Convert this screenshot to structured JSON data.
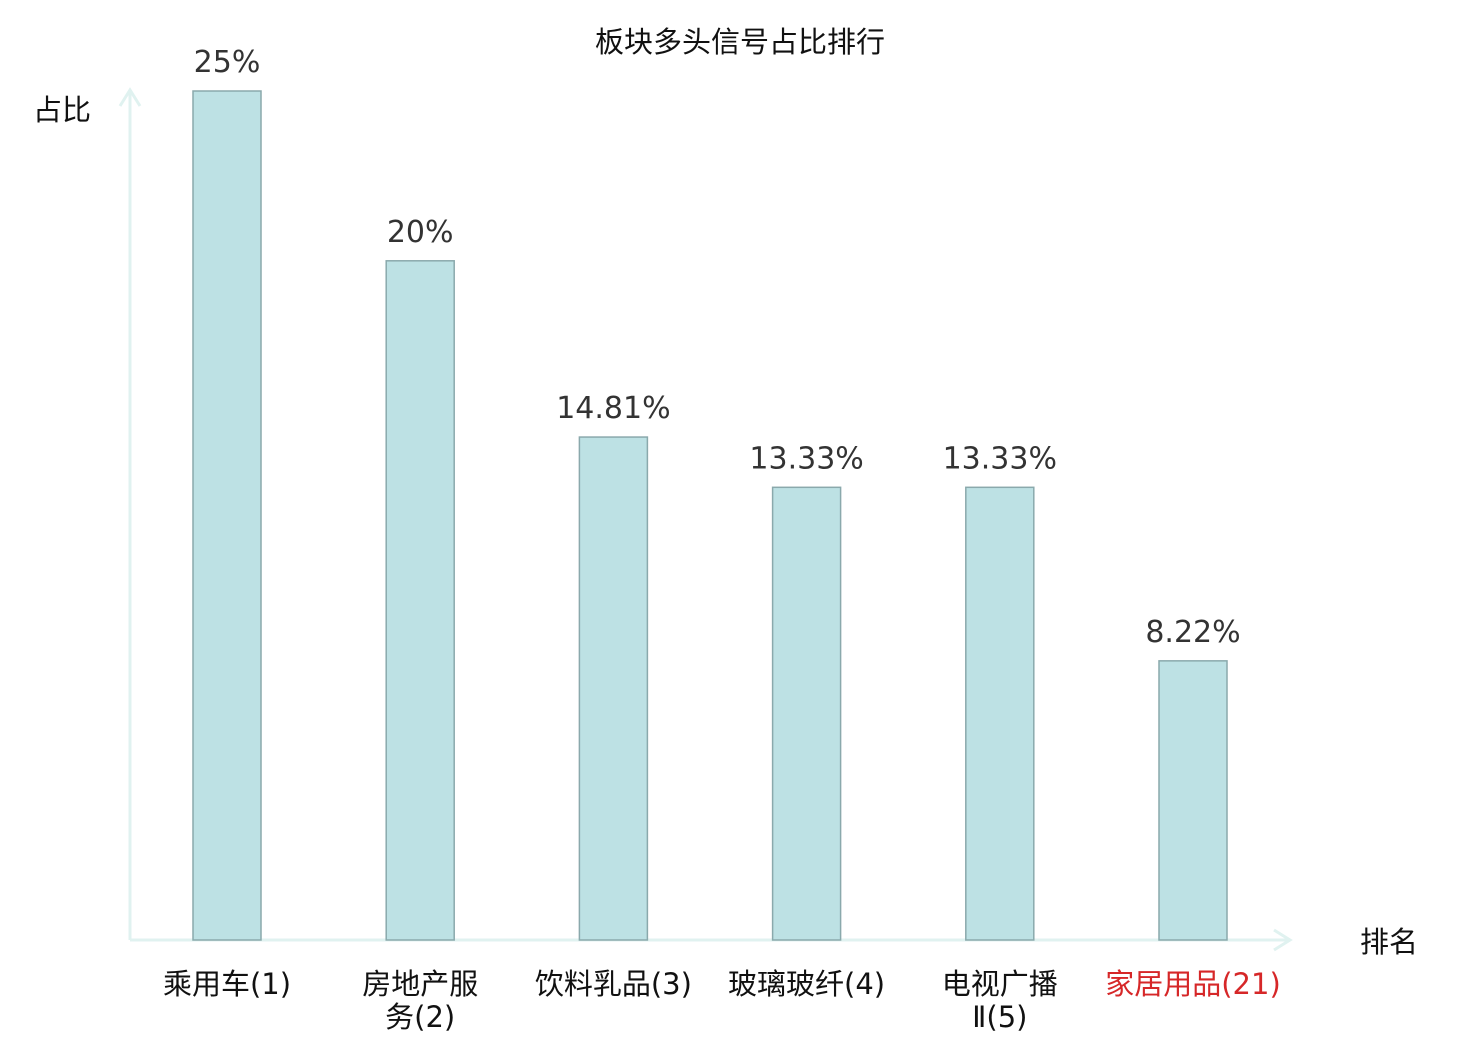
{
  "chart_data": {
    "type": "bar",
    "title": "板块多头信号占比排行",
    "ylabel": "占比",
    "xlabel": "排名",
    "grid": false,
    "ylim": [
      0,
      25
    ],
    "categories": [
      {
        "name": "乘用车",
        "rank": "(1)",
        "lines": [
          "乘用车(1)"
        ]
      },
      {
        "name": "房地产服务",
        "rank": "(2)",
        "lines": [
          "房地产服",
          "务(2)"
        ]
      },
      {
        "name": "饮料乳品",
        "rank": "(3)",
        "lines": [
          "饮料乳品(3)"
        ]
      },
      {
        "name": "玻璃玻纤",
        "rank": "(4)",
        "lines": [
          "玻璃玻纤(4)"
        ]
      },
      {
        "name": "电视广播Ⅱ",
        "rank": "(5)",
        "lines": [
          "电视广播",
          "Ⅱ(5)"
        ]
      },
      {
        "name": "家居用品",
        "rank": "(21)",
        "lines": [
          "家居用品(21)"
        ],
        "highlight": true
      }
    ],
    "values": [
      25,
      20,
      14.81,
      13.33,
      13.33,
      8.22
    ],
    "value_labels": [
      "25%",
      "20%",
      "14.81%",
      "13.33%",
      "13.33%",
      "8.22%"
    ],
    "colors": {
      "bar_fill": "#bde1e4",
      "bar_stroke": "#8aa9ac",
      "axis": "#e0f2f0",
      "label": "#111111",
      "highlight_label": "#d62728",
      "value_text": "#333333"
    }
  }
}
